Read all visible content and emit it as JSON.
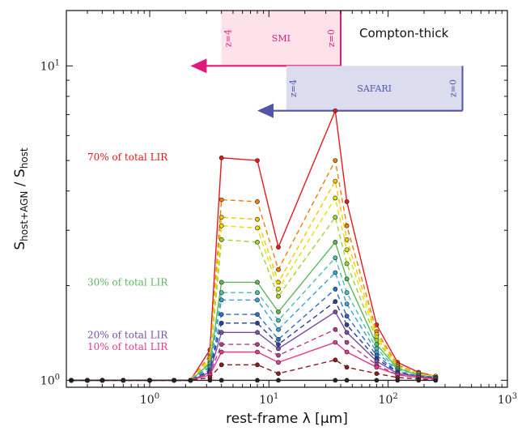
{
  "chart_data": {
    "type": "line",
    "xlabel": "rest-frame λ [μm]",
    "ylabel_main": "S",
    "ylabel_sub1": "host+AGN",
    "ylabel_mid": " / S",
    "ylabel_sub2": "host",
    "xscale": "log",
    "yscale": "log",
    "xlim": [
      0.2,
      1000
    ],
    "ylim": [
      0.95,
      15
    ],
    "xticks": [
      {
        "value": 1,
        "base": "10",
        "exp": "0"
      },
      {
        "value": 10,
        "base": "10",
        "exp": "1"
      },
      {
        "value": 100,
        "base": "10",
        "exp": "2"
      },
      {
        "value": 1000,
        "base": "10",
        "exp": "3"
      }
    ],
    "yticks": [
      {
        "value": 1,
        "base": "10",
        "exp": "0"
      },
      {
        "value": 10,
        "base": "10",
        "exp": "1"
      }
    ],
    "x": [
      0.22,
      0.3,
      0.4,
      0.6,
      1.0,
      1.6,
      2.2,
      3.2,
      4.0,
      8.0,
      12.0,
      36.0,
      45.0,
      80.0,
      120.0,
      180.0,
      250.0
    ],
    "series": [
      {
        "color": "#e41a1c",
        "style": "solid",
        "values": [
          1.0,
          1.0,
          1.0,
          1.0,
          1.0,
          1.0,
          1.0,
          1.25,
          5.1,
          5.0,
          2.65,
          7.2,
          3.7,
          1.5,
          1.14,
          1.06,
          1.03
        ]
      },
      {
        "color": "#f07d0a",
        "style": "dashed",
        "values": [
          1.0,
          1.0,
          1.0,
          1.0,
          1.0,
          1.0,
          1.0,
          1.2,
          3.75,
          3.7,
          2.25,
          5.0,
          3.1,
          1.43,
          1.12,
          1.05,
          1.03
        ]
      },
      {
        "color": "#f6c600",
        "style": "dashed",
        "values": [
          1.0,
          1.0,
          1.0,
          1.0,
          1.0,
          1.0,
          1.0,
          1.18,
          3.3,
          3.25,
          2.05,
          4.3,
          2.8,
          1.4,
          1.11,
          1.05,
          1.03
        ]
      },
      {
        "color": "#e3e000",
        "style": "dashed",
        "values": [
          1.0,
          1.0,
          1.0,
          1.0,
          1.0,
          1.0,
          1.0,
          1.16,
          3.1,
          3.05,
          1.95,
          3.8,
          2.6,
          1.37,
          1.1,
          1.05,
          1.02
        ]
      },
      {
        "color": "#9fd235",
        "style": "dashed",
        "values": [
          1.0,
          1.0,
          1.0,
          1.0,
          1.0,
          1.0,
          1.0,
          1.14,
          2.8,
          2.75,
          1.85,
          3.3,
          2.35,
          1.34,
          1.1,
          1.04,
          1.02
        ]
      },
      {
        "color": "#5cb85c",
        "style": "solid",
        "values": [
          1.0,
          1.0,
          1.0,
          1.0,
          1.0,
          1.0,
          1.0,
          1.13,
          2.05,
          2.05,
          1.65,
          2.75,
          2.1,
          1.3,
          1.09,
          1.04,
          1.02
        ]
      },
      {
        "color": "#4bbfa8",
        "style": "dashed",
        "values": [
          1.0,
          1.0,
          1.0,
          1.0,
          1.0,
          1.0,
          1.0,
          1.11,
          1.9,
          1.9,
          1.55,
          2.45,
          1.9,
          1.26,
          1.08,
          1.04,
          1.02
        ]
      },
      {
        "color": "#3aa0d0",
        "style": "dashed",
        "values": [
          1.0,
          1.0,
          1.0,
          1.0,
          1.0,
          1.0,
          1.0,
          1.1,
          1.8,
          1.8,
          1.45,
          2.2,
          1.75,
          1.23,
          1.07,
          1.03,
          1.02
        ]
      },
      {
        "color": "#2c6fbf",
        "style": "dashed",
        "values": [
          1.0,
          1.0,
          1.0,
          1.0,
          1.0,
          1.0,
          1.0,
          1.08,
          1.62,
          1.62,
          1.35,
          1.95,
          1.6,
          1.2,
          1.06,
          1.03,
          1.02
        ]
      },
      {
        "color": "#2b3f93",
        "style": "dashed",
        "values": [
          1.0,
          1.0,
          1.0,
          1.0,
          1.0,
          1.0,
          1.0,
          1.07,
          1.52,
          1.52,
          1.3,
          1.78,
          1.5,
          1.17,
          1.06,
          1.03,
          1.02
        ]
      },
      {
        "color": "#7b4fa6",
        "style": "solid",
        "values": [
          1.0,
          1.0,
          1.0,
          1.0,
          1.0,
          1.0,
          1.0,
          1.06,
          1.42,
          1.42,
          1.26,
          1.65,
          1.42,
          1.15,
          1.05,
          1.03,
          1.01
        ]
      },
      {
        "color": "#b33d8b",
        "style": "dashed",
        "values": [
          1.0,
          1.0,
          1.0,
          1.0,
          1.0,
          1.0,
          1.0,
          1.05,
          1.3,
          1.3,
          1.2,
          1.45,
          1.32,
          1.12,
          1.04,
          1.02,
          1.01
        ]
      },
      {
        "color": "#e23a8f",
        "style": "solid",
        "values": [
          1.0,
          1.0,
          1.0,
          1.0,
          1.0,
          1.0,
          1.0,
          1.04,
          1.23,
          1.23,
          1.14,
          1.32,
          1.23,
          1.1,
          1.04,
          1.02,
          1.01
        ]
      },
      {
        "color": "#8b1a1a",
        "style": "dashed",
        "values": [
          1.0,
          1.0,
          1.0,
          1.0,
          1.0,
          1.0,
          1.0,
          1.02,
          1.12,
          1.12,
          1.05,
          1.16,
          1.1,
          1.05,
          1.02,
          1.01,
          1.0
        ]
      },
      {
        "color": "#222222",
        "style": "solid",
        "values": [
          1.0,
          1.0,
          1.0,
          1.0,
          1.0,
          1.0,
          1.0,
          1.0,
          1.0,
          1.0,
          1.0,
          1.0,
          1.0,
          1.0,
          1.0,
          1.0,
          1.0
        ]
      }
    ],
    "annotations": [
      {
        "text": "70% of total LIR",
        "color": "#e41a1c",
        "x": 0.3,
        "y": 5.0
      },
      {
        "text": "30% of total LIR",
        "color": "#5cb85c",
        "x": 0.3,
        "y": 2.0
      },
      {
        "text": "20% of total LIR",
        "color": "#7b4fa6",
        "x": 0.3,
        "y": 1.36
      },
      {
        "text": "10% of total LIR",
        "color": "#e23a8f",
        "x": 0.3,
        "y": 1.25
      }
    ],
    "bands": [
      {
        "name": "SMI",
        "z_high": "z=4",
        "z_low": "z=0",
        "x_start": 4.0,
        "x_end": 40.0,
        "y_top": 15,
        "y_bottom": 10,
        "arrow_to": 2.2,
        "fill": "#fde2ea",
        "color": "#e0197d"
      },
      {
        "name": "SAFARI",
        "z_high": "z=4",
        "z_low": "z=0",
        "x_start": 14.0,
        "x_end": 420.0,
        "y_top": 10,
        "y_bottom": 7.2,
        "arrow_to": 8.0,
        "fill": "#dcdcef",
        "color": "#5055a8"
      }
    ],
    "note": "Compton-thick"
  }
}
